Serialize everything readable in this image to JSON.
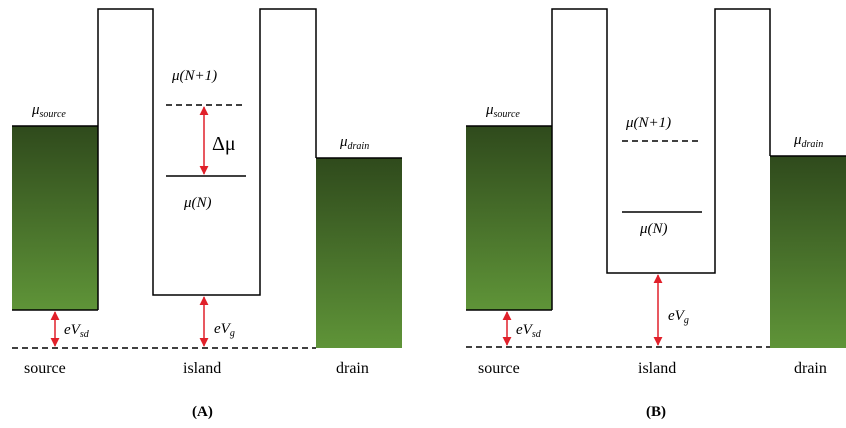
{
  "panels": [
    {
      "panel_label": "(A)",
      "mu_source": {
        "base": "μ",
        "sub": "source"
      },
      "mu_drain": {
        "base": "μ",
        "sub": "drain"
      },
      "mu_n_plus_1": "μ(N+1)",
      "mu_n": "μ(N)",
      "delta_mu": "Δμ",
      "eVsd": {
        "base": "eV",
        "sub": "sd"
      },
      "eVg": {
        "base": "eV",
        "sub": "g"
      },
      "region_labels": {
        "source": "source",
        "island": "island",
        "drain": "drain"
      }
    },
    {
      "panel_label": "(B)",
      "mu_source": {
        "base": "μ",
        "sub": "source"
      },
      "mu_drain": {
        "base": "μ",
        "sub": "drain"
      },
      "mu_n_plus_1": "μ(N+1)",
      "mu_n": "μ(N)",
      "eVsd": {
        "base": "eV",
        "sub": "sd"
      },
      "eVg": {
        "base": "eV",
        "sub": "g"
      },
      "region_labels": {
        "source": "source",
        "island": "island",
        "drain": "drain"
      }
    }
  ],
  "colors": {
    "lead_top": "#2f4a1c",
    "lead_bottom": "#5f9438",
    "arrow": "#e0202a",
    "line": "#000000"
  }
}
